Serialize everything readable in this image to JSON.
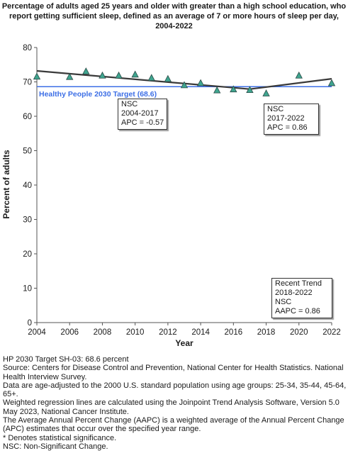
{
  "chart_data": {
    "type": "scatter",
    "title_lines": [
      "Percentage of adults aged 25 years and older with greater than a high school education, who",
      "report getting sufficient sleep, defined as an average of 7 or more hours of sleep per day,",
      "2004-2022"
    ],
    "xlabel": "Year",
    "ylabel": "Percent of adults",
    "xlim": [
      2004,
      2022
    ],
    "ylim": [
      0,
      80
    ],
    "x_ticks": [
      "2004",
      "2006",
      "2008",
      "2010",
      "2012",
      "2014",
      "2016",
      "2018",
      "2020",
      "2022"
    ],
    "y_ticks": [
      "0",
      "10",
      "20",
      "30",
      "40",
      "50",
      "60",
      "70",
      "80"
    ],
    "series": [
      {
        "x": [
          2004,
          2006,
          2007,
          2008,
          2009,
          2010,
          2011,
          2012,
          2013,
          2014,
          2015,
          2016,
          2017,
          2018,
          2020,
          2022
        ],
        "y": [
          71.5,
          71.4,
          73.0,
          71.8,
          71.8,
          72.1,
          71.1,
          70.8,
          69.0,
          69.6,
          67.5,
          67.8,
          67.6,
          66.6,
          71.8,
          69.6
        ]
      }
    ],
    "trend": {
      "segment1": {
        "x": [
          2004,
          2017
        ],
        "y": [
          73.2,
          67.9
        ]
      },
      "segment2": {
        "x": [
          2017,
          2022
        ],
        "y": [
          67.9,
          70.9
        ]
      }
    },
    "target": {
      "value": 68.6,
      "label": "Healthy People 2030 Target (68.6)"
    },
    "annotations": [
      {
        "lines": [
          "NSC",
          "2004-2017",
          "APC = -0.57"
        ]
      },
      {
        "lines": [
          "NSC",
          "2017-2022",
          "APC =  0.86"
        ]
      },
      {
        "lines": [
          "Recent Trend",
          "2018-2022",
          "NSC",
          "AAPC =  0.86"
        ]
      }
    ],
    "grid": false,
    "colors": {
      "marker_fill": "#3fa58f",
      "marker_stroke": "#2b4a46",
      "trend_line": "#3a3a3a",
      "target_line": "#3d6fe6"
    }
  },
  "footnotes": [
    "HP 2030 Target SH-03: 68.6 percent",
    "Source: Centers for Disease Control and Prevention, National Center for Health Statistics. National Health Interview Survey.",
    "Data are age-adjusted to the 2000 U.S. standard population using age groups: 25-34, 35-44, 45-64, 65+.",
    "Weighted regression lines are calculated using the Joinpoint Trend Analysis Software, Version 5.0 May 2023, National Cancer Institute.",
    "The Average Annual Percent Change (AAPC) is a weighted average of the Annual Percent Change (APC) estimates that occur over the specified year range.",
    "* Denotes statistical significance.",
    "NSC: Non-Significant Change."
  ]
}
